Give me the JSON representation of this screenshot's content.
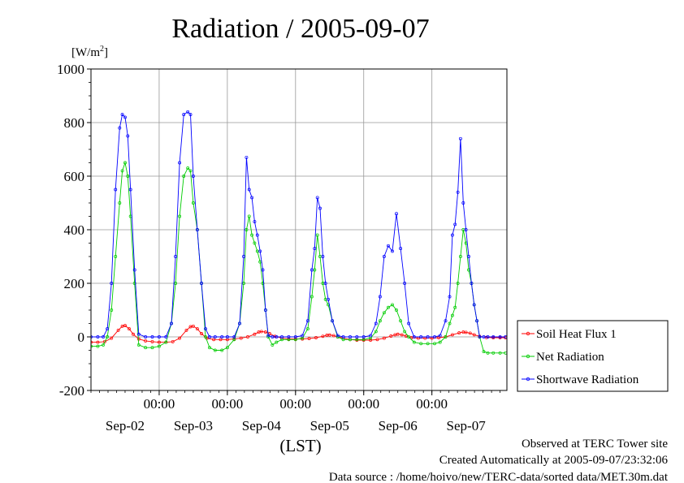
{
  "chart_data": {
    "type": "line",
    "title": "Radiation / 2005-09-07",
    "ylabel_unit": {
      "base": "[W/m",
      "sup": "2",
      "close": "]"
    },
    "ylim": [
      -200,
      1000
    ],
    "yticks": [
      "-200",
      "0",
      "200",
      "400",
      "600",
      "800",
      "1000"
    ],
    "xlim": [
      0,
      6.1
    ],
    "x_time_labels": [
      "00:00",
      "00:00",
      "00:00",
      "00:00",
      "00:00"
    ],
    "x_date_labels": [
      "Sep-02",
      "Sep-03",
      "Sep-04",
      "Sep-05",
      "Sep-06",
      "Sep-07"
    ],
    "xlabel": "(LST)",
    "grid": true,
    "legend_position": "right",
    "series": [
      {
        "name": "Soil Heat Flux 1",
        "color": "#ff0000",
        "x": [
          0.0,
          0.1,
          0.2,
          0.3,
          0.4,
          0.46,
          0.5,
          0.56,
          0.62,
          0.7,
          0.8,
          0.9,
          1.0,
          1.1,
          1.2,
          1.3,
          1.4,
          1.46,
          1.5,
          1.56,
          1.62,
          1.7,
          1.8,
          1.9,
          2.0,
          2.1,
          2.2,
          2.3,
          2.4,
          2.46,
          2.5,
          2.56,
          2.62,
          2.7,
          2.8,
          2.9,
          3.0,
          3.1,
          3.2,
          3.3,
          3.4,
          3.46,
          3.5,
          3.56,
          3.62,
          3.7,
          3.8,
          3.9,
          4.0,
          4.1,
          4.2,
          4.3,
          4.4,
          4.46,
          4.5,
          4.56,
          4.62,
          4.7,
          4.8,
          4.9,
          5.0,
          5.1,
          5.2,
          5.3,
          5.4,
          5.46,
          5.5,
          5.56,
          5.62,
          5.7,
          5.8,
          5.9,
          6.0,
          6.08
        ],
        "y": [
          -20,
          -20,
          -18,
          -5,
          25,
          40,
          42,
          30,
          10,
          -8,
          -15,
          -18,
          -20,
          -20,
          -18,
          -5,
          25,
          38,
          40,
          30,
          12,
          -5,
          -10,
          -10,
          -10,
          -8,
          -5,
          0,
          10,
          18,
          20,
          18,
          12,
          2,
          -5,
          -8,
          -8,
          -8,
          -6,
          -3,
          2,
          6,
          7,
          5,
          0,
          -5,
          -10,
          -12,
          -12,
          -12,
          -10,
          -5,
          3,
          8,
          10,
          8,
          3,
          -3,
          -5,
          -5,
          -5,
          -3,
          0,
          8,
          15,
          18,
          17,
          14,
          8,
          2,
          -2,
          -3,
          -3,
          -3
        ]
      },
      {
        "name": "Net Radiation",
        "color": "#00cc00",
        "x": [
          0.0,
          0.1,
          0.18,
          0.24,
          0.3,
          0.36,
          0.42,
          0.46,
          0.5,
          0.54,
          0.58,
          0.64,
          0.7,
          0.8,
          0.9,
          1.0,
          1.1,
          1.18,
          1.24,
          1.3,
          1.36,
          1.42,
          1.46,
          1.5,
          1.56,
          1.62,
          1.68,
          1.74,
          1.82,
          1.92,
          2.0,
          2.1,
          2.18,
          2.24,
          2.28,
          2.32,
          2.36,
          2.4,
          2.44,
          2.48,
          2.52,
          2.56,
          2.6,
          2.66,
          2.72,
          2.8,
          2.9,
          3.0,
          3.1,
          3.18,
          3.24,
          3.28,
          3.32,
          3.36,
          3.4,
          3.44,
          3.48,
          3.54,
          3.62,
          3.7,
          3.8,
          3.9,
          4.0,
          4.1,
          4.18,
          4.24,
          4.3,
          4.36,
          4.42,
          4.48,
          4.54,
          4.6,
          4.66,
          4.74,
          4.84,
          4.94,
          5.04,
          5.12,
          5.2,
          5.26,
          5.3,
          5.34,
          5.38,
          5.42,
          5.46,
          5.5,
          5.54,
          5.58,
          5.62,
          5.66,
          5.7,
          5.76,
          5.82,
          5.9,
          6.0,
          6.08
        ],
        "y": [
          -35,
          -35,
          -30,
          0,
          100,
          300,
          500,
          620,
          650,
          600,
          450,
          200,
          -30,
          -40,
          -40,
          -35,
          -20,
          50,
          200,
          450,
          600,
          630,
          620,
          500,
          400,
          200,
          0,
          -40,
          -50,
          -50,
          -40,
          -10,
          50,
          200,
          400,
          450,
          380,
          350,
          320,
          280,
          200,
          100,
          0,
          -30,
          -20,
          -10,
          -10,
          -10,
          -5,
          30,
          150,
          250,
          380,
          300,
          200,
          140,
          120,
          60,
          0,
          -10,
          -10,
          -10,
          -10,
          -5,
          20,
          60,
          90,
          110,
          120,
          100,
          60,
          20,
          0,
          -20,
          -25,
          -25,
          -25,
          -20,
          0,
          50,
          80,
          110,
          200,
          300,
          400,
          350,
          250,
          200,
          120,
          60,
          0,
          -55,
          -60,
          -60,
          -60,
          -60
        ]
      },
      {
        "name": "Shortwave Radiation",
        "color": "#0000ff",
        "x": [
          0.0,
          0.1,
          0.18,
          0.24,
          0.3,
          0.36,
          0.42,
          0.46,
          0.5,
          0.54,
          0.58,
          0.64,
          0.7,
          0.8,
          0.9,
          1.0,
          1.1,
          1.18,
          1.24,
          1.3,
          1.36,
          1.42,
          1.46,
          1.5,
          1.56,
          1.62,
          1.68,
          1.74,
          1.82,
          1.92,
          2.0,
          2.1,
          2.18,
          2.24,
          2.28,
          2.32,
          2.36,
          2.4,
          2.44,
          2.48,
          2.52,
          2.56,
          2.6,
          2.66,
          2.72,
          2.8,
          2.9,
          3.0,
          3.1,
          3.18,
          3.24,
          3.28,
          3.32,
          3.36,
          3.4,
          3.44,
          3.48,
          3.54,
          3.62,
          3.7,
          3.8,
          3.9,
          4.0,
          4.1,
          4.18,
          4.24,
          4.3,
          4.36,
          4.42,
          4.48,
          4.54,
          4.6,
          4.66,
          4.74,
          4.84,
          4.94,
          5.04,
          5.12,
          5.2,
          5.26,
          5.3,
          5.34,
          5.38,
          5.42,
          5.46,
          5.5,
          5.54,
          5.58,
          5.62,
          5.66,
          5.7,
          5.76,
          5.82,
          5.9,
          6.0,
          6.08
        ],
        "y": [
          0,
          0,
          0,
          30,
          200,
          550,
          780,
          830,
          820,
          750,
          550,
          250,
          10,
          0,
          0,
          0,
          0,
          50,
          300,
          650,
          830,
          840,
          830,
          600,
          400,
          200,
          30,
          0,
          0,
          0,
          0,
          0,
          50,
          300,
          670,
          550,
          520,
          430,
          380,
          320,
          250,
          100,
          5,
          0,
          0,
          0,
          0,
          0,
          5,
          60,
          250,
          330,
          520,
          480,
          300,
          200,
          140,
          60,
          5,
          0,
          0,
          0,
          0,
          5,
          50,
          150,
          300,
          340,
          320,
          460,
          330,
          200,
          50,
          0,
          0,
          0,
          0,
          5,
          60,
          150,
          380,
          420,
          540,
          740,
          500,
          400,
          300,
          200,
          120,
          60,
          0,
          0,
          0,
          0,
          0,
          0
        ]
      }
    ]
  },
  "footer": {
    "line1": "Observed at TERC Tower site",
    "line2": "Created Automatically at 2005-09-07/23:32:06",
    "line3": "Data source : /home/hoivo/new/TERC-data/sorted  data/MET.30m.dat"
  }
}
